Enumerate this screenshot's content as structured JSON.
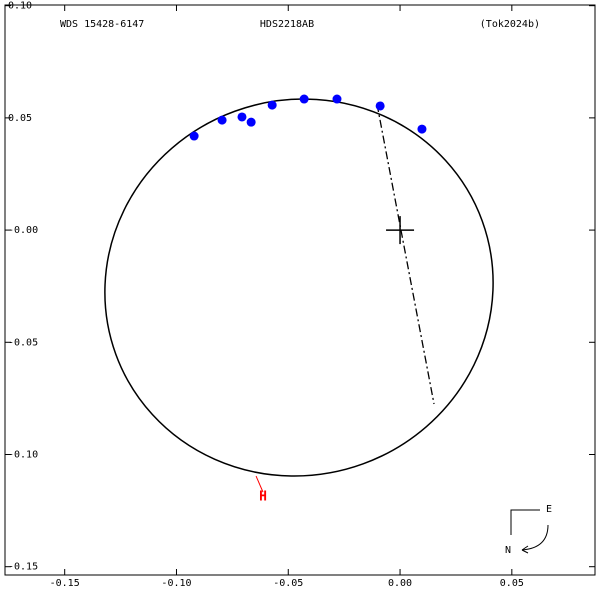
{
  "chart_data": {
    "type": "scatter",
    "header": {
      "left": "WDS 15428-6147",
      "center": "HDS2218AB",
      "right": "(Tok2024b)"
    },
    "xlim": [
      -0.1767,
      0.0872
    ],
    "ylim": [
      -0.1537,
      0.1003
    ],
    "xticks": [
      -0.15,
      {
        "value": -0.1,
        "label": "-0.10"
      },
      -0.05,
      {
        "value": 0,
        "label": "0.00"
      },
      0.05
    ],
    "yticks": [
      {
        "value": 0.1,
        "label": "0.10"
      },
      0.05,
      {
        "value": 0,
        "label": "-0.00"
      },
      -0.05,
      {
        "value": -0.1,
        "label": "-0.10"
      },
      -0.15
    ],
    "series": [
      {
        "color": "#0000ff",
        "x": [
          -0.0921,
          -0.0796,
          -0.0707,
          -0.0666,
          -0.0572,
          -0.0429,
          -0.0282,
          -0.0089,
          0.0098
        ],
        "values": [
          0.0419,
          0.049,
          0.0504,
          0.0481,
          0.0557,
          0.0584,
          0.0584,
          0.0553,
          0.045
        ]
      }
    ],
    "orbit": {
      "cx": -0.0452,
      "cy": -0.0256,
      "a": 0.0872,
      "b": 0.0836,
      "angle": 20,
      "color": "#000000"
    },
    "node_line": {
      "x": [
        -0.0103,
        0.0152
      ],
      "y": [
        0.0561,
        -0.0775
      ]
    },
    "origin": {
      "x": 0,
      "y": 0
    },
    "marker": {
      "label": "H",
      "color": "#ff0000",
      "x": -0.0613,
      "y": -0.119,
      "x0": -0.0644,
      "y0": -0.1096
    },
    "compass": {
      "east": "E",
      "north": "N"
    }
  }
}
